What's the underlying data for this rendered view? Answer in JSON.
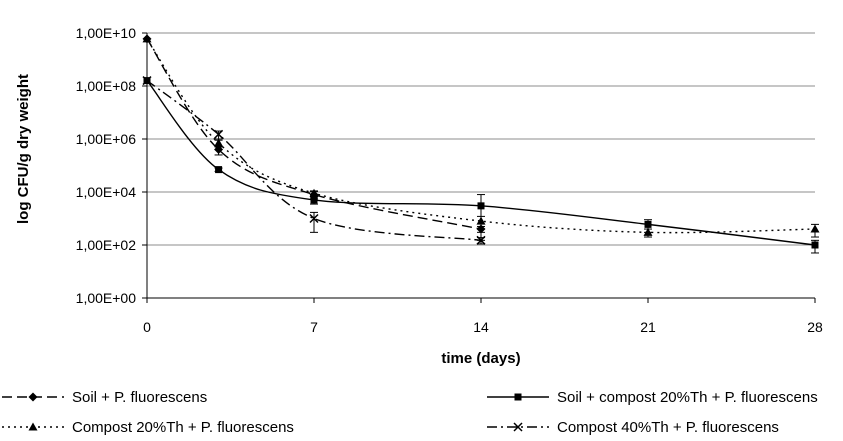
{
  "chart_data": {
    "type": "line",
    "xlabel": "time (days)",
    "ylabel": "log CFU/g dry weight",
    "y_scale": "log",
    "xlim": [
      0,
      28
    ],
    "ylim": [
      1,
      10000000000
    ],
    "x_ticks": [
      0,
      7,
      14,
      21,
      28
    ],
    "x_tick_labels": [
      "0",
      "7",
      "14",
      "21",
      "28"
    ],
    "y_ticks": [
      1,
      100,
      10000,
      1000000,
      100000000,
      10000000000
    ],
    "y_tick_labels": [
      "1,00E+00",
      "1,00E+02",
      "1,00E+04",
      "1,00E+06",
      "1,00E+08",
      "1,00E+10"
    ],
    "grid": "horizontal major",
    "legend_position": "bottom",
    "series": [
      {
        "name": "Soil + P. fluorescens",
        "marker": "diamond",
        "line_style": "dash",
        "color": "#000000",
        "x": [
          0,
          3,
          7,
          14
        ],
        "y": [
          6000000000,
          400000,
          8000,
          400
        ],
        "err": [
          0,
          150000,
          2500,
          100
        ]
      },
      {
        "name": "Soil + compost 20%Th + P. fluorescens",
        "marker": "square",
        "line_style": "solid",
        "color": "#000000",
        "x": [
          0,
          3,
          7,
          14,
          21,
          28
        ],
        "y": [
          160000000,
          70000,
          5000,
          3000,
          600,
          100
        ],
        "err": [
          0,
          10000,
          1500,
          5000,
          300,
          50
        ]
      },
      {
        "name": "Compost 20%Th + P. fluorescens",
        "marker": "triangle",
        "line_style": "dot",
        "color": "#000000",
        "x": [
          0,
          3,
          7,
          14,
          21,
          28
        ],
        "y": [
          6000000000,
          700000,
          9000,
          800,
          300,
          400
        ],
        "err": [
          0,
          200000,
          2000,
          400,
          100,
          200
        ]
      },
      {
        "name": "Compost 40%Th + P. fluorescens",
        "marker": "x",
        "line_style": "dash-dot",
        "color": "#000000",
        "x": [
          0,
          3,
          7,
          14
        ],
        "y": [
          160000000,
          1500000,
          1000,
          150
        ],
        "err": [
          0,
          500000,
          700,
          40
        ]
      }
    ]
  }
}
